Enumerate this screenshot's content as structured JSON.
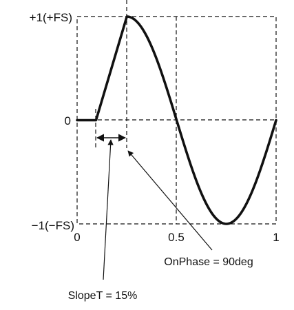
{
  "y_labels": {
    "top": "+1(+FS)",
    "mid": "0",
    "bottom": "−1(−FS)"
  },
  "x_labels": {
    "zero": "0",
    "half": "0.5",
    "one": "1"
  },
  "annotations": {
    "onphase": "OnPhase = 90deg",
    "slope": "SlopeT = 15%"
  },
  "colors": {
    "line": "#111111",
    "grid": "#111111",
    "background": "#ffffff"
  }
}
